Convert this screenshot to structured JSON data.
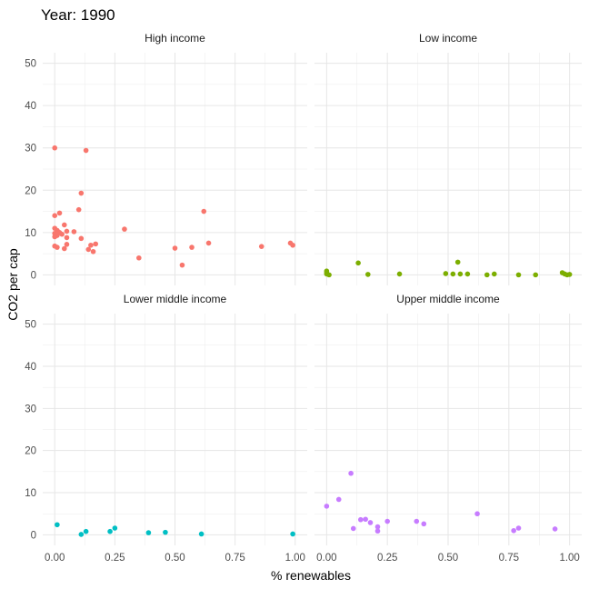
{
  "chart_data": {
    "type": "scatter",
    "title": "Year: 1990",
    "xlabel": "% renewables",
    "ylabel": "CO2 per cap",
    "xlim": [
      -0.05,
      1.05
    ],
    "ylim": [
      -2.5,
      52.5
    ],
    "x_ticks": [
      "0.00",
      "0.25",
      "0.50",
      "0.75",
      "1.00"
    ],
    "x_tick_values": [
      0,
      0.25,
      0.5,
      0.75,
      1.0
    ],
    "y_ticks": [
      "0",
      "10",
      "20",
      "30",
      "40",
      "50"
    ],
    "y_tick_values": [
      0,
      10,
      20,
      30,
      40,
      50
    ],
    "grid": true,
    "legend": "none",
    "panels": [
      {
        "name": "High income",
        "color": "#F8766D",
        "points": [
          [
            0.0,
            30.0
          ],
          [
            0.13,
            29.4
          ],
          [
            0.11,
            19.3
          ],
          [
            0.0,
            14.0
          ],
          [
            0.02,
            14.6
          ],
          [
            0.1,
            15.4
          ],
          [
            0.62,
            15.0
          ],
          [
            0.0,
            11.0
          ],
          [
            0.01,
            10.5
          ],
          [
            0.02,
            10.0
          ],
          [
            0.0,
            9.8
          ],
          [
            0.01,
            9.3
          ],
          [
            0.03,
            9.6
          ],
          [
            0.04,
            11.8
          ],
          [
            0.05,
            10.3
          ],
          [
            0.08,
            10.2
          ],
          [
            0.0,
            9.0
          ],
          [
            0.05,
            8.8
          ],
          [
            0.11,
            8.6
          ],
          [
            0.29,
            10.8
          ],
          [
            0.05,
            7.2
          ],
          [
            0.15,
            7.0
          ],
          [
            0.17,
            7.3
          ],
          [
            0.0,
            6.8
          ],
          [
            0.01,
            6.5
          ],
          [
            0.04,
            6.2
          ],
          [
            0.14,
            6.0
          ],
          [
            0.16,
            5.5
          ],
          [
            0.35,
            4.0
          ],
          [
            0.5,
            6.3
          ],
          [
            0.57,
            6.5
          ],
          [
            0.64,
            7.5
          ],
          [
            0.53,
            2.3
          ],
          [
            0.86,
            6.7
          ],
          [
            0.98,
            7.5
          ],
          [
            0.99,
            7.0
          ]
        ]
      },
      {
        "name": "Low income",
        "color": "#7CAE00",
        "points": [
          [
            0.0,
            0.9
          ],
          [
            0.0,
            0.5
          ],
          [
            0.0,
            0.2
          ],
          [
            0.01,
            0.0
          ],
          [
            0.13,
            2.8
          ],
          [
            0.17,
            0.1
          ],
          [
            0.3,
            0.2
          ],
          [
            0.49,
            0.3
          ],
          [
            0.52,
            0.2
          ],
          [
            0.54,
            3.0
          ],
          [
            0.55,
            0.2
          ],
          [
            0.58,
            0.2
          ],
          [
            0.66,
            0.0
          ],
          [
            0.69,
            0.2
          ],
          [
            0.79,
            0.0
          ],
          [
            0.86,
            0.0
          ],
          [
            0.97,
            0.5
          ],
          [
            0.98,
            0.2
          ],
          [
            0.99,
            0.0
          ],
          [
            1.0,
            0.1
          ]
        ]
      },
      {
        "name": "Lower middle income",
        "color": "#00BFC4",
        "points": [
          [
            0.01,
            2.4
          ],
          [
            0.11,
            0.1
          ],
          [
            0.13,
            0.8
          ],
          [
            0.23,
            0.8
          ],
          [
            0.25,
            1.6
          ],
          [
            0.39,
            0.5
          ],
          [
            0.46,
            0.6
          ],
          [
            0.61,
            0.2
          ],
          [
            0.99,
            0.2
          ]
        ]
      },
      {
        "name": "Upper middle income",
        "color": "#C77CFF",
        "points": [
          [
            0.0,
            6.8
          ],
          [
            0.05,
            8.4
          ],
          [
            0.1,
            14.6
          ],
          [
            0.11,
            1.5
          ],
          [
            0.14,
            3.6
          ],
          [
            0.16,
            3.7
          ],
          [
            0.18,
            2.9
          ],
          [
            0.21,
            1.9
          ],
          [
            0.21,
            0.9
          ],
          [
            0.25,
            3.2
          ],
          [
            0.37,
            3.2
          ],
          [
            0.4,
            2.6
          ],
          [
            0.62,
            5.0
          ],
          [
            0.77,
            1.0
          ],
          [
            0.79,
            1.6
          ],
          [
            0.94,
            1.4
          ]
        ]
      }
    ]
  }
}
